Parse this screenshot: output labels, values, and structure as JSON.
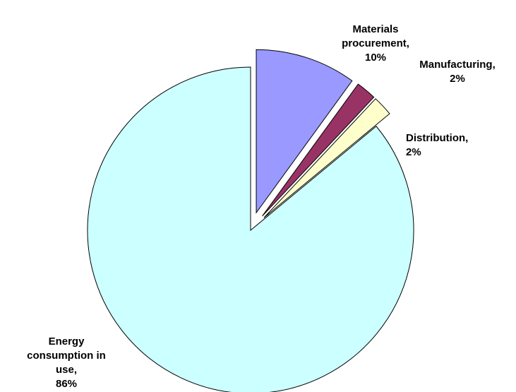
{
  "chart_data": {
    "type": "pie",
    "title": "",
    "legend": "none",
    "unit": "%",
    "slices": [
      {
        "label": "Materials procurement, 10%",
        "category": "Materials procurement",
        "value": 10,
        "color": "#9999FF",
        "exploded": true
      },
      {
        "label": "Manufacturing, 2%",
        "category": "Manufacturing",
        "value": 2,
        "color": "#993366",
        "exploded": true
      },
      {
        "label": "Distribution, 2%",
        "category": "Distribution",
        "value": 2,
        "color": "#FFFFCC",
        "exploded": true
      },
      {
        "label": "Energy consumption in use, 86%",
        "category": "Energy consumption in use",
        "value": 86,
        "color": "#CCFFFF",
        "exploded": false
      }
    ],
    "outline_color": "#000000"
  }
}
